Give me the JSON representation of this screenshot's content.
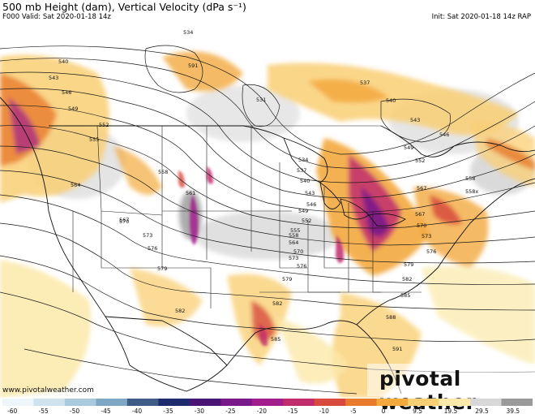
{
  "header": {
    "title": "500 mb Height (dam), Vertical Velocity (dPa s⁻¹)",
    "valid": "F000 Valid: Sat 2020-01-18 14z",
    "init": "Init: Sat 2020-01-18 14z RAP"
  },
  "contour_labels": [
    {
      "text": "534"
    },
    {
      "text": "540"
    },
    {
      "text": "543"
    },
    {
      "text": "546"
    },
    {
      "text": "549"
    },
    {
      "text": "552"
    },
    {
      "text": "555"
    },
    {
      "text": "558"
    },
    {
      "text": "564"
    },
    {
      "text": "567"
    },
    {
      "text": "570"
    },
    {
      "text": "573"
    },
    {
      "text": "576"
    },
    {
      "text": "579"
    },
    {
      "text": "582"
    },
    {
      "text": "585"
    },
    {
      "text": "588"
    },
    {
      "text": "591"
    },
    {
      "text": "537"
    },
    {
      "text": "531"
    },
    {
      "text": "561"
    },
    {
      "text": "558x"
    }
  ],
  "colorbar": {
    "labels": [
      "-60",
      "-55",
      "-50",
      "-45",
      "-40",
      "-35",
      "-30",
      "-25",
      "-20",
      "-15",
      "-10",
      "-5",
      "0",
      "9.5",
      "19.5",
      "29.5",
      "39.5"
    ],
    "colors": [
      "#eef6fb",
      "#cfe3ef",
      "#a9c9de",
      "#7fa6c2",
      "#3e5c86",
      "#1c2a6e",
      "#4a1575",
      "#7a1a8a",
      "#a21e8c",
      "#c12c6d",
      "#d84a3e",
      "#e87b2c",
      "#f3a93d",
      "#f9cf74",
      "#fbe9a9",
      "#d8d8d8",
      "#9a9a9a"
    ]
  },
  "watermark": "www.pivotalweather.com",
  "logo": "pivotal weather"
}
